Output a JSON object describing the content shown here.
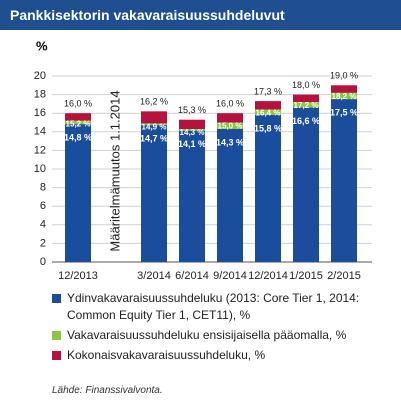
{
  "chart_data": {
    "type": "bar",
    "title": "Pankkisektorin vakavaraisuussuhdeluvut",
    "y_label": "%",
    "annotation": "Määritelmämuutos 1.1.2014",
    "source": "Lähde: Finanssivalvonta.",
    "categories": [
      "12/2013",
      null,
      "3/2014",
      "6/2014",
      "9/2014",
      "12/2014",
      "1/2015",
      "2/2015"
    ],
    "series": [
      {
        "name": "Ydinvakavaraisuussuhdeluku (2013: Core Tier 1, 2014: Common Equity Tier 1, CET11), %",
        "color": "#1a4e9c",
        "values": [
          14.8,
          null,
          14.7,
          14.1,
          14.3,
          15.8,
          16.6,
          17.5
        ],
        "value_labels": [
          "14,8 %",
          null,
          "14,7 %",
          "14,1 %",
          "14,3 %",
          "15,8 %",
          "16,6 %",
          "17,5 %"
        ]
      },
      {
        "name": "Vakavaraisuussuhdeluku ensisijaisella pääomalla, %",
        "color": "#8dc63f",
        "values": [
          15.2,
          null,
          14.9,
          14.3,
          15.0,
          16.4,
          17.2,
          18.2
        ],
        "value_labels": [
          "15,2 %",
          null,
          "14,9 %",
          "14,3 %",
          "15,0 %",
          "16,4 %",
          "17,2 %",
          "18,2 %"
        ]
      },
      {
        "name": "Kokonaisvakavaraisuussuhdeluku, %",
        "color": "#b5123f",
        "values": [
          16.0,
          null,
          16.2,
          15.3,
          16.0,
          17.3,
          18.0,
          19.0
        ],
        "value_labels": [
          "16,0 %",
          null,
          "16,2 %",
          "15,3 %",
          "16,0 %",
          "17,3 %",
          "18,0 %",
          "19,0 %"
        ]
      }
    ],
    "ylim": [
      0,
      20
    ],
    "yticks": [
      0,
      2,
      4,
      6,
      8,
      10,
      12,
      14,
      16,
      18,
      20
    ],
    "grid": true
  }
}
